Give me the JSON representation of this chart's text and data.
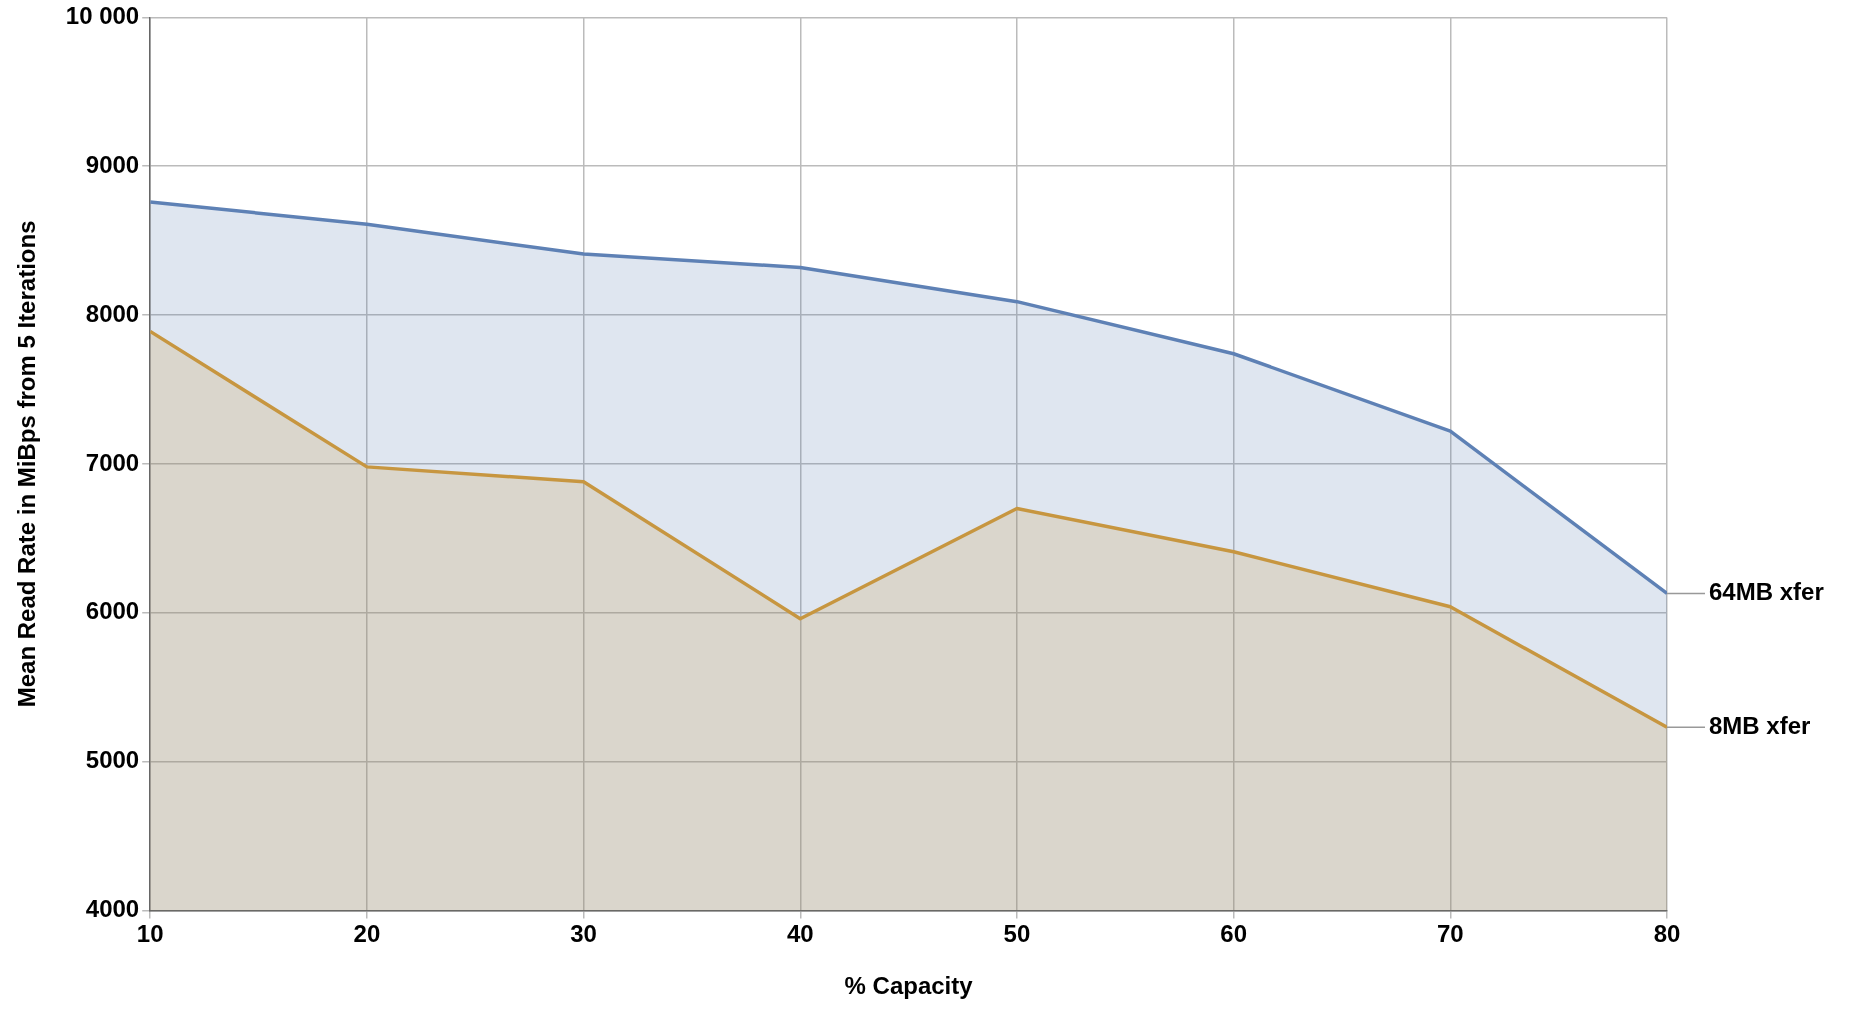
{
  "chart_data": {
    "type": "area",
    "xlabel": "% Capacity",
    "ylabel": "Mean Read Rate in MiBps from 5 Iterations",
    "x": [
      10,
      20,
      30,
      40,
      50,
      60,
      70,
      80
    ],
    "series": [
      {
        "name": "64MB xfer",
        "color": "#5e81b5",
        "values": [
          8760,
          8610,
          8410,
          8320,
          8090,
          7740,
          7220,
          6130
        ]
      },
      {
        "name": "8MB xfer",
        "color": "#e19c24",
        "values": [
          7890,
          6980,
          6880,
          5960,
          6700,
          6410,
          6040,
          5230
        ]
      }
    ],
    "xlim": [
      10,
      80
    ],
    "xticks": [
      10,
      20,
      30,
      40,
      50,
      60,
      70,
      80
    ],
    "ylim": [
      4000,
      10000
    ],
    "yticks": [
      4000,
      5000,
      6000,
      7000,
      8000,
      9000,
      {
        "value": 10000,
        "label": "10 000"
      }
    ],
    "grid": true,
    "legend": false,
    "marker": "none",
    "line_style": "solid"
  }
}
